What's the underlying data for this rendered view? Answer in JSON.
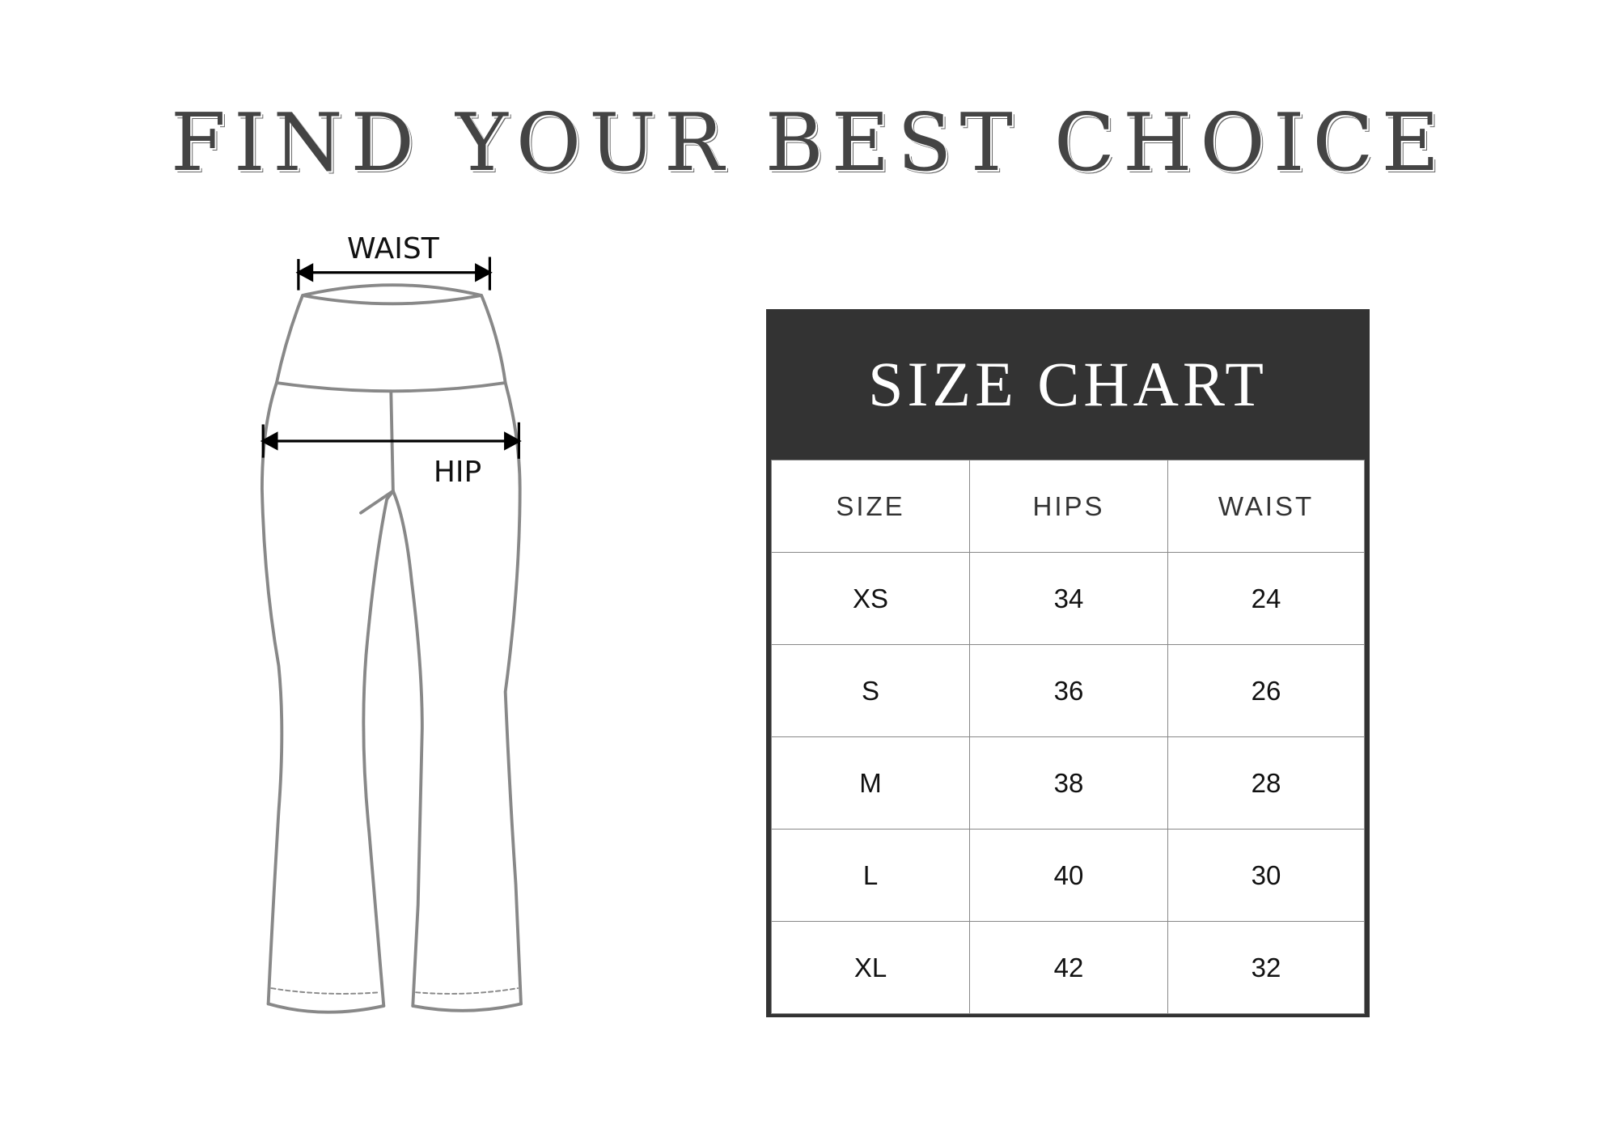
{
  "title": "FIND YOUR BEST CHOICE",
  "diagram": {
    "waist_label": "WAIST",
    "hip_label": "HIP"
  },
  "size_chart": {
    "title": "SIZE CHART",
    "headers": [
      "SIZE",
      "HIPS",
      "WAIST"
    ],
    "rows": [
      [
        "XS",
        "34",
        "24"
      ],
      [
        "S",
        "36",
        "26"
      ],
      [
        "M",
        "38",
        "28"
      ],
      [
        "L",
        "40",
        "30"
      ],
      [
        "XL",
        "42",
        "32"
      ]
    ]
  },
  "colors": {
    "header_bg": "#333333",
    "line": "#888888"
  }
}
